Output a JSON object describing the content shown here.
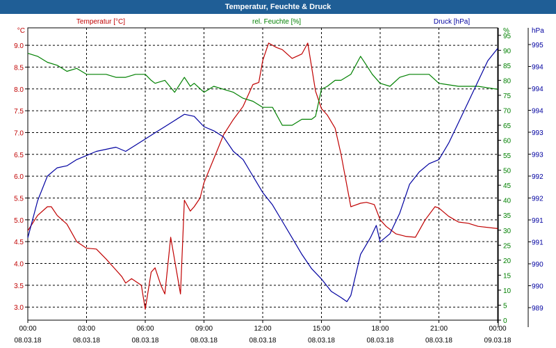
{
  "window": {
    "title": "Temperatur, Feuchte & Druck"
  },
  "chart_data": {
    "type": "line",
    "title": "Temperatur, Feuchte & Druck",
    "grid": true,
    "x_axis": {
      "range": [
        0,
        24
      ],
      "tick_labels": [
        {
          "time": "00:00",
          "date": "08.03.18"
        },
        {
          "time": "03:00",
          "date": "08.03.18"
        },
        {
          "time": "06:00",
          "date": "08.03.18"
        },
        {
          "time": "09:00",
          "date": "08.03.18"
        },
        {
          "time": "12:00",
          "date": "08.03.18"
        },
        {
          "time": "15:00",
          "date": "08.03.18"
        },
        {
          "time": "18:00",
          "date": "08.03.18"
        },
        {
          "time": "21:00",
          "date": "08.03.18"
        },
        {
          "time": "00:00",
          "date": "09.03.18"
        }
      ]
    },
    "temperature_axis": {
      "unit": "°C",
      "label": "Temperatur [°C]",
      "color": "#c00000",
      "range": [
        2.7,
        9.4
      ],
      "ticks": [
        "3.0",
        "3.5",
        "4.0",
        "4.5",
        "5.0",
        "5.5",
        "6.0",
        "6.5",
        "7.0",
        "7.5",
        "8.0",
        "8.5",
        "9.0"
      ]
    },
    "humidity_axis": {
      "unit": "%",
      "label": "rel. Feuchte [%]",
      "color": "#008000",
      "range": [
        0,
        97.5
      ],
      "ticks": [
        "0",
        "5",
        "10",
        "15",
        "20",
        "25",
        "30",
        "35",
        "40",
        "45",
        "50",
        "55",
        "60",
        "65",
        "70",
        "75",
        "80",
        "85",
        "90",
        "95"
      ]
    },
    "pressure_axis": {
      "unit": "hPa",
      "label": "Druck [hPa]",
      "color": "#0000a0",
      "range": [
        988.6,
        995.7
      ],
      "ticks": [
        "989",
        "990",
        "990",
        "991",
        "991",
        "992",
        "992",
        "993",
        "993",
        "994",
        "994",
        "994",
        "995"
      ]
    },
    "series": [
      {
        "name": "Temperatur [°C]",
        "color": "#c00000",
        "x": [
          0,
          0.5,
          1,
          1.2,
          1.5,
          2,
          2.5,
          3,
          3.5,
          4,
          4.5,
          4.8,
          5,
          5.3,
          5.8,
          6,
          6.3,
          6.5,
          6.8,
          7,
          7.3,
          7.8,
          8,
          8.3,
          8.5,
          8.8,
          9,
          9.5,
          10,
          10.5,
          11,
          11.5,
          11.8,
          12,
          12.3,
          12.7,
          13,
          13.5,
          14,
          14.3,
          14.7,
          15,
          15.3,
          15.7,
          16,
          16.5,
          17,
          17.3,
          17.7,
          18,
          18.3,
          18.8,
          19.3,
          19.8,
          20.3,
          20.8,
          21,
          21.5,
          22,
          22.5,
          23,
          24
        ],
        "y": [
          4.75,
          5.1,
          5.3,
          5.3,
          5.1,
          4.9,
          4.5,
          4.35,
          4.33,
          4.1,
          3.85,
          3.7,
          3.55,
          3.65,
          3.5,
          2.95,
          3.8,
          3.9,
          3.5,
          3.3,
          4.6,
          3.3,
          5.45,
          5.2,
          5.3,
          5.5,
          5.85,
          6.4,
          6.95,
          7.3,
          7.6,
          8.1,
          8.15,
          8.65,
          9.05,
          8.95,
          8.9,
          8.7,
          8.8,
          9.05,
          7.95,
          7.55,
          7.4,
          7.1,
          6.5,
          5.3,
          5.38,
          5.4,
          5.35,
          5.0,
          4.85,
          4.68,
          4.62,
          4.6,
          5.0,
          5.3,
          5.27,
          5.08,
          4.95,
          4.92,
          4.85,
          4.8
        ]
      },
      {
        "name": "rel. Feuchte [%]",
        "color": "#008000",
        "x": [
          0,
          0.5,
          1,
          1.5,
          2,
          2.5,
          3,
          3.5,
          4,
          4.5,
          5,
          5.5,
          6,
          6.3,
          6.5,
          7,
          7.5,
          8,
          8.3,
          8.5,
          9,
          9.5,
          10,
          10.5,
          11,
          11.5,
          12,
          12.5,
          13,
          13.5,
          14,
          14.5,
          14.7,
          15,
          15.3,
          15.7,
          16,
          16.5,
          17,
          17.3,
          17.6,
          18,
          18.5,
          19,
          19.5,
          20,
          20.5,
          21,
          22,
          23,
          24
        ],
        "y": [
          89,
          88,
          86,
          85,
          83,
          84,
          82,
          82,
          82,
          81,
          81,
          82,
          82,
          80,
          79,
          80,
          76,
          81,
          78,
          79,
          76,
          78,
          77,
          76,
          74,
          73,
          71,
          71,
          65,
          65,
          67,
          67,
          68,
          77,
          78,
          80,
          80,
          82,
          88,
          85,
          82,
          79,
          78,
          81,
          82,
          82,
          82,
          79,
          78,
          78,
          77
        ]
      },
      {
        "name": "Druck [hPa]",
        "color": "#0000a0",
        "x": [
          0,
          0.5,
          1,
          1.5,
          2,
          2.5,
          3,
          3.5,
          4,
          4.5,
          5,
          5.5,
          6,
          6.5,
          7,
          7.5,
          8,
          8.5,
          9,
          9.5,
          10,
          10.5,
          11,
          11.5,
          12,
          12.5,
          13,
          13.5,
          14,
          14.5,
          15,
          15.5,
          16,
          16.3,
          16.5,
          16.8,
          17,
          17.5,
          17.8,
          18,
          18.5,
          19,
          19.5,
          20,
          20.5,
          21,
          21.5,
          22,
          22.5,
          23,
          23.5,
          24
        ],
        "y": [
          990.6,
          991.5,
          992.1,
          992.3,
          992.35,
          992.5,
          992.6,
          992.7,
          992.75,
          992.8,
          992.7,
          992.85,
          993.0,
          993.15,
          993.3,
          993.45,
          993.6,
          993.55,
          993.3,
          993.2,
          993.05,
          992.7,
          992.5,
          992.1,
          991.7,
          991.4,
          991.0,
          990.6,
          990.2,
          989.85,
          989.6,
          989.3,
          989.15,
          989.05,
          989.2,
          989.8,
          990.2,
          990.6,
          990.9,
          990.5,
          990.7,
          991.2,
          991.9,
          992.2,
          992.4,
          992.5,
          992.9,
          993.4,
          993.9,
          994.4,
          994.9,
          995.2
        ]
      }
    ]
  }
}
